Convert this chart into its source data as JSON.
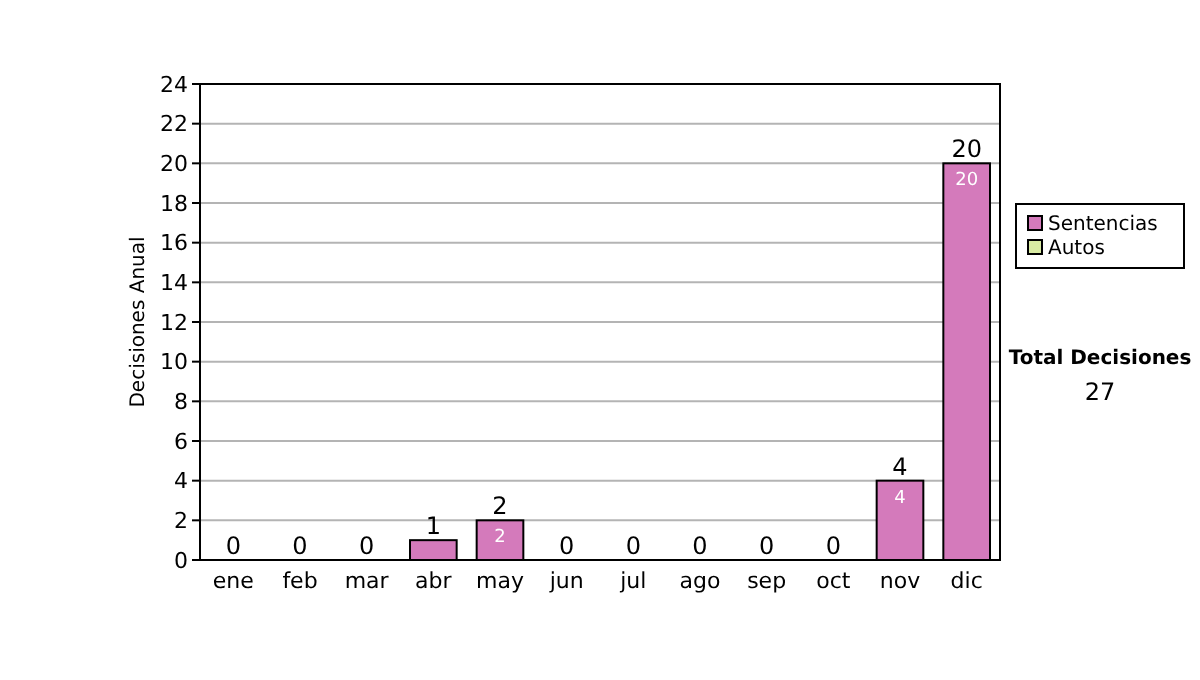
{
  "chart_data": {
    "type": "bar",
    "stacked": true,
    "ylabel": "Decisiones Anual",
    "categories": [
      "ene",
      "feb",
      "mar",
      "abr",
      "may",
      "jun",
      "jul",
      "ago",
      "sep",
      "oct",
      "nov",
      "dic"
    ],
    "series": [
      {
        "name": "Sentencias",
        "color": "#d47abb",
        "values": [
          0,
          0,
          0,
          1,
          2,
          0,
          0,
          0,
          0,
          0,
          4,
          20
        ],
        "value_labels": [
          null,
          null,
          null,
          null,
          "2",
          null,
          null,
          null,
          null,
          null,
          "4",
          "20"
        ]
      },
      {
        "name": "Autos",
        "color": "#d9eba3",
        "values": [
          0,
          0,
          0,
          0,
          0,
          0,
          0,
          0,
          0,
          0,
          0,
          0
        ]
      }
    ],
    "totals": [
      "0",
      "0",
      "0",
      "1",
      "2",
      "0",
      "0",
      "0",
      "0",
      "0",
      "4",
      "20"
    ],
    "ylim": [
      0,
      24
    ],
    "yticks": [
      0,
      2,
      4,
      6,
      8,
      10,
      12,
      14,
      16,
      18,
      20,
      22,
      24
    ],
    "grid": "y",
    "legend": "right",
    "annotations": [
      "Total Decisiones",
      "27"
    ]
  }
}
